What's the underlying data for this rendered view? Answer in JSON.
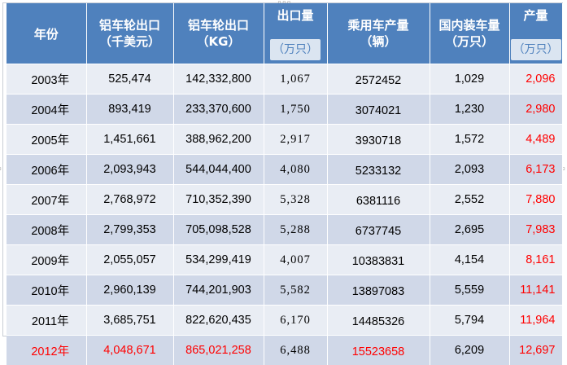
{
  "table": {
    "headers": {
      "year": "年份",
      "usd": [
        "铝车轮出口",
        "（千美元）"
      ],
      "kg": [
        "铝车轮出口",
        "（KG）"
      ],
      "export_units": "出口量",
      "export_units_sub": "（万只）",
      "car_output": [
        "乘用车产量",
        "（辆）"
      ],
      "domestic": [
        "国内装车量",
        "（万只）"
      ],
      "production": "产量",
      "production_sub": "（万只）"
    },
    "rows": [
      {
        "year": "2003年",
        "usd": "525,474",
        "kg": "142,332,800",
        "export_units": "1,067",
        "car_output": "2572452",
        "domestic": "1,029",
        "production": "2,096"
      },
      {
        "year": "2004年",
        "usd": "893,419",
        "kg": "233,370,600",
        "export_units": "1,750",
        "car_output": "3074021",
        "domestic": "1,230",
        "production": "2,980"
      },
      {
        "year": "2005年",
        "usd": "1,451,661",
        "kg": "388,962,200",
        "export_units": "2,917",
        "car_output": "3930718",
        "domestic": "1,572",
        "production": "4,489"
      },
      {
        "year": "2006年",
        "usd": "2,093,943",
        "kg": "544,044,400",
        "export_units": "4,080",
        "car_output": "5233132",
        "domestic": "2,093",
        "production": "6,173"
      },
      {
        "year": "2007年",
        "usd": "2,768,972",
        "kg": "710,352,390",
        "export_units": "5,328",
        "car_output": "6381116",
        "domestic": "2,552",
        "production": "7,880"
      },
      {
        "year": "2008年",
        "usd": "2,799,353",
        "kg": "705,098,528",
        "export_units": "5,288",
        "car_output": "6737745",
        "domestic": "2,695",
        "production": "7,983"
      },
      {
        "year": "2009年",
        "usd": "2,055,057",
        "kg": "534,299,419",
        "export_units": "4,007",
        "car_output": "10383831",
        "domestic": "4,154",
        "production": "8,161"
      },
      {
        "year": "2010年",
        "usd": "2,960,139",
        "kg": "744,201,903",
        "export_units": "5,582",
        "car_output": "13897083",
        "domestic": "5,559",
        "production": "11,141"
      },
      {
        "year": "2011年",
        "usd": "3,685,751",
        "kg": "822,620,435",
        "export_units": "6,170",
        "car_output": "14485326",
        "domestic": "5,794",
        "production": "11,964"
      },
      {
        "year": "2012年",
        "usd": "4,048,671",
        "kg": "865,021,258",
        "export_units": "6,488",
        "car_output": "15523658",
        "domestic": "6,209",
        "production": "12,697"
      }
    ]
  },
  "colors": {
    "header_bg": "#4f81bd",
    "row_light": "#e9edf4",
    "row_dark": "#d0d8e8",
    "highlight_text": "#ff0000"
  }
}
